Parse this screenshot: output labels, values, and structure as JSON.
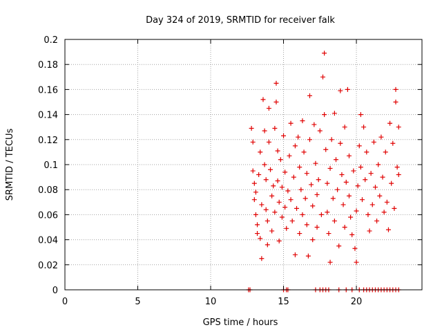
{
  "chart_data": {
    "type": "scatter",
    "title": "Day 324 of 2019, SRMTID for receiver falk",
    "xlabel": "GPS time / hours",
    "ylabel": "SRMTID / TECUs",
    "xlim": [
      0,
      24.5
    ],
    "ylim": [
      0,
      0.2
    ],
    "xticks": [
      0,
      5,
      10,
      15,
      20
    ],
    "yticks": [
      0,
      0.02,
      0.04,
      0.06,
      0.08,
      0.1,
      0.12,
      0.14,
      0.16,
      0.18,
      0.2
    ],
    "xtick_labels": [
      "0",
      "5",
      "10",
      "15",
      "20"
    ],
    "ytick_labels": [
      "0",
      "0.02",
      "0.04",
      "0.06",
      "0.08",
      "0.1",
      "0.12",
      "0.14",
      "0.16",
      "0.18",
      "0.2"
    ],
    "grid": true,
    "marker": "+",
    "color": "#e00000",
    "series": [
      {
        "name": "",
        "points": [
          [
            12.6,
            0.0
          ],
          [
            12.7,
            0.0
          ],
          [
            15.0,
            0.0
          ],
          [
            15.2,
            0.0
          ],
          [
            15.3,
            0.0
          ],
          [
            17.2,
            0.0
          ],
          [
            17.5,
            0.0
          ],
          [
            17.7,
            0.0
          ],
          [
            17.9,
            0.0
          ],
          [
            18.1,
            0.0
          ],
          [
            18.8,
            0.0
          ],
          [
            19.3,
            0.0
          ],
          [
            19.7,
            0.0
          ],
          [
            20.2,
            0.0
          ],
          [
            20.5,
            0.0
          ],
          [
            20.7,
            0.0
          ],
          [
            20.9,
            0.0
          ],
          [
            21.1,
            0.0
          ],
          [
            21.3,
            0.0
          ],
          [
            21.5,
            0.0
          ],
          [
            21.7,
            0.0
          ],
          [
            21.9,
            0.0
          ],
          [
            22.1,
            0.0
          ],
          [
            22.3,
            0.0
          ],
          [
            22.5,
            0.0
          ],
          [
            22.7,
            0.0
          ],
          [
            22.9,
            0.0
          ],
          [
            12.8,
            0.129
          ],
          [
            12.9,
            0.118
          ],
          [
            12.9,
            0.095
          ],
          [
            13.0,
            0.085
          ],
          [
            13.0,
            0.072
          ],
          [
            13.1,
            0.078
          ],
          [
            13.1,
            0.06
          ],
          [
            13.2,
            0.052
          ],
          [
            13.2,
            0.045
          ],
          [
            13.3,
            0.092
          ],
          [
            13.4,
            0.11
          ],
          [
            13.4,
            0.041
          ],
          [
            13.5,
            0.025
          ],
          [
            13.5,
            0.068
          ],
          [
            13.6,
            0.152
          ],
          [
            13.7,
            0.127
          ],
          [
            13.7,
            0.1
          ],
          [
            13.8,
            0.088
          ],
          [
            13.8,
            0.064
          ],
          [
            13.9,
            0.036
          ],
          [
            13.9,
            0.055
          ],
          [
            14.0,
            0.145
          ],
          [
            14.0,
            0.118
          ],
          [
            14.1,
            0.096
          ],
          [
            14.2,
            0.075
          ],
          [
            14.2,
            0.047
          ],
          [
            14.3,
            0.083
          ],
          [
            14.4,
            0.129
          ],
          [
            14.4,
            0.062
          ],
          [
            14.5,
            0.165
          ],
          [
            14.5,
            0.15
          ],
          [
            14.6,
            0.111
          ],
          [
            14.6,
            0.087
          ],
          [
            14.7,
            0.07
          ],
          [
            14.7,
            0.039
          ],
          [
            14.8,
            0.104
          ],
          [
            14.9,
            0.058
          ],
          [
            14.9,
            0.082
          ],
          [
            15.0,
            0.123
          ],
          [
            15.1,
            0.094
          ],
          [
            15.1,
            0.066
          ],
          [
            15.2,
            0.049
          ],
          [
            15.3,
            0.079
          ],
          [
            15.4,
            0.107
          ],
          [
            15.5,
            0.133
          ],
          [
            15.5,
            0.072
          ],
          [
            15.6,
            0.055
          ],
          [
            15.7,
            0.09
          ],
          [
            15.8,
            0.028
          ],
          [
            15.8,
            0.115
          ],
          [
            15.9,
            0.065
          ],
          [
            16.0,
            0.122
          ],
          [
            16.1,
            0.098
          ],
          [
            16.1,
            0.045
          ],
          [
            16.2,
            0.08
          ],
          [
            16.3,
            0.135
          ],
          [
            16.3,
            0.06
          ],
          [
            16.4,
            0.11
          ],
          [
            16.5,
            0.073
          ],
          [
            16.6,
            0.052
          ],
          [
            16.6,
            0.093
          ],
          [
            16.7,
            0.027
          ],
          [
            16.8,
            0.155
          ],
          [
            16.8,
            0.12
          ],
          [
            16.9,
            0.084
          ],
          [
            17.0,
            0.067
          ],
          [
            17.0,
            0.04
          ],
          [
            17.1,
            0.132
          ],
          [
            17.2,
            0.101
          ],
          [
            17.3,
            0.076
          ],
          [
            17.3,
            0.05
          ],
          [
            17.4,
            0.088
          ],
          [
            17.5,
            0.127
          ],
          [
            17.6,
            0.06
          ],
          [
            17.7,
            0.17
          ],
          [
            17.8,
            0.189
          ],
          [
            17.8,
            0.14
          ],
          [
            17.9,
            0.112
          ],
          [
            18.0,
            0.085
          ],
          [
            18.0,
            0.062
          ],
          [
            18.1,
            0.045
          ],
          [
            18.2,
            0.097
          ],
          [
            18.2,
            0.022
          ],
          [
            18.3,
            0.12
          ],
          [
            18.4,
            0.073
          ],
          [
            18.5,
            0.141
          ],
          [
            18.5,
            0.055
          ],
          [
            18.6,
            0.104
          ],
          [
            18.7,
            0.08
          ],
          [
            18.8,
            0.035
          ],
          [
            18.9,
            0.159
          ],
          [
            18.9,
            0.117
          ],
          [
            19.0,
            0.092
          ],
          [
            19.1,
            0.068
          ],
          [
            19.2,
            0.05
          ],
          [
            19.2,
            0.13
          ],
          [
            19.3,
            0.086
          ],
          [
            19.4,
            0.16
          ],
          [
            19.5,
            0.107
          ],
          [
            19.5,
            0.075
          ],
          [
            19.6,
            0.058
          ],
          [
            19.7,
            0.044
          ],
          [
            19.8,
            0.095
          ],
          [
            19.9,
            0.033
          ],
          [
            20.0,
            0.022
          ],
          [
            20.0,
            0.063
          ],
          [
            20.1,
            0.083
          ],
          [
            20.2,
            0.115
          ],
          [
            20.3,
            0.14
          ],
          [
            20.3,
            0.098
          ],
          [
            20.4,
            0.072
          ],
          [
            20.5,
            0.13
          ],
          [
            20.6,
            0.088
          ],
          [
            20.7,
            0.11
          ],
          [
            20.8,
            0.06
          ],
          [
            20.9,
            0.047
          ],
          [
            21.0,
            0.093
          ],
          [
            21.1,
            0.068
          ],
          [
            21.2,
            0.118
          ],
          [
            21.3,
            0.082
          ],
          [
            21.4,
            0.055
          ],
          [
            21.5,
            0.1
          ],
          [
            21.6,
            0.075
          ],
          [
            21.7,
            0.122
          ],
          [
            21.8,
            0.09
          ],
          [
            21.9,
            0.062
          ],
          [
            22.0,
            0.11
          ],
          [
            22.1,
            0.07
          ],
          [
            22.2,
            0.048
          ],
          [
            22.3,
            0.133
          ],
          [
            22.4,
            0.085
          ],
          [
            22.5,
            0.117
          ],
          [
            22.6,
            0.065
          ],
          [
            22.7,
            0.15
          ],
          [
            22.7,
            0.16
          ],
          [
            22.8,
            0.098
          ],
          [
            22.9,
            0.13
          ],
          [
            22.9,
            0.092
          ]
        ]
      }
    ]
  }
}
